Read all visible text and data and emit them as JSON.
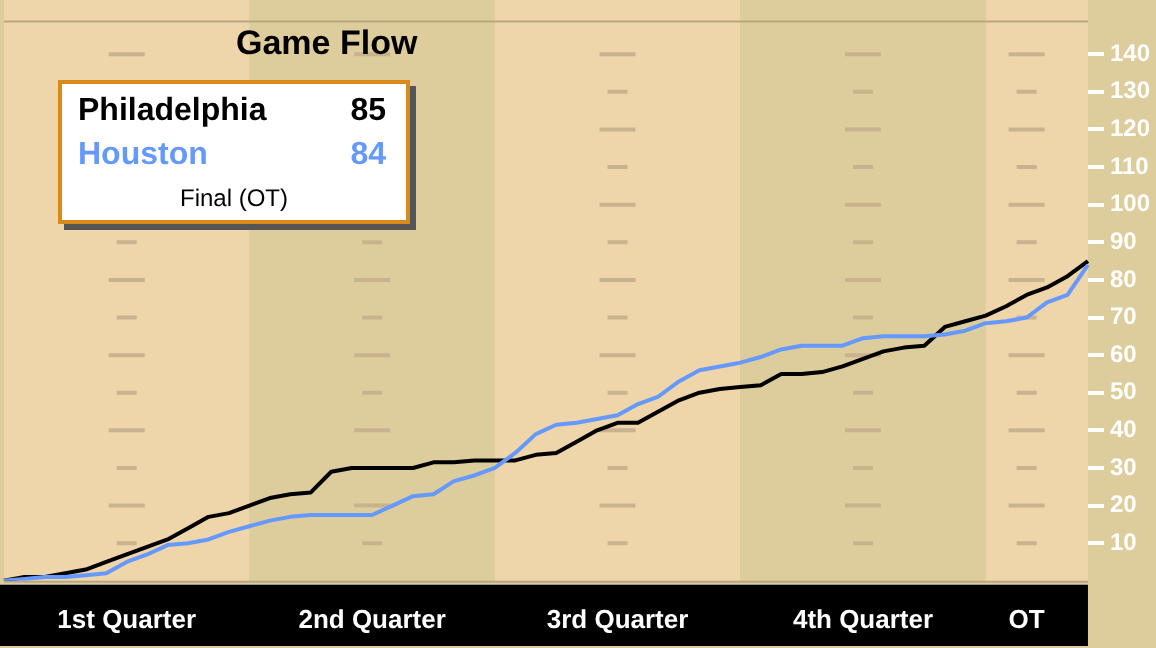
{
  "chart_data": {
    "type": "line",
    "title": "Game Flow",
    "annotations": [
      "85",
      "84",
      "Final (OT)"
    ],
    "categories": [
      null,
      null,
      null,
      null,
      null,
      null,
      "1st Quarter",
      null,
      null,
      null,
      null,
      null,
      null,
      null,
      null,
      null,
      null,
      null,
      "2nd Quarter",
      null,
      null,
      null,
      null,
      null,
      null,
      null,
      null,
      null,
      null,
      null,
      "3rd Quarter",
      null,
      null,
      null,
      null,
      null,
      null,
      null,
      null,
      null,
      null,
      null,
      "4th Quarter",
      null,
      null,
      null,
      null,
      null,
      null,
      null,
      "OT",
      null,
      null,
      null
    ],
    "ylim": [
      0,
      149
    ],
    "yticks": [
      10,
      20,
      30,
      40,
      50,
      60,
      70,
      80,
      90,
      100,
      110,
      120,
      130,
      140
    ],
    "grid": "y",
    "legend": "top left",
    "marker": "none",
    "line_style": "solid",
    "series": [
      {
        "name": "Philadelphia",
        "color": "#000000",
        "values": [
          0,
          1,
          1,
          2,
          3,
          5,
          7,
          9,
          11,
          14,
          17,
          18,
          20,
          22,
          23,
          23.5,
          29,
          30,
          30,
          30,
          30,
          31.5,
          31.5,
          32,
          32,
          32,
          33.5,
          34,
          37,
          40,
          42,
          42,
          45,
          48,
          50,
          51,
          51.5,
          52,
          55,
          55,
          55.5,
          57,
          59,
          61,
          62,
          62.5,
          67.5,
          69,
          70.5,
          73,
          76,
          78,
          81,
          85
        ]
      },
      {
        "name": "Houston",
        "color": "#6699ff",
        "values": [
          0,
          0.5,
          1,
          1,
          1.5,
          2,
          5,
          7,
          9.5,
          10,
          11,
          13,
          14.5,
          16,
          17,
          17.5,
          17.5,
          17.5,
          17.5,
          20,
          22.5,
          23,
          26.5,
          28,
          30,
          34,
          39,
          41.5,
          42,
          43,
          44,
          47,
          49,
          53,
          56,
          57,
          58,
          59.5,
          61.5,
          62.5,
          62.5,
          62.5,
          64.5,
          65,
          65,
          65,
          65.5,
          66.5,
          68.5,
          69,
          70,
          74,
          76,
          84
        ]
      }
    ]
  }
}
